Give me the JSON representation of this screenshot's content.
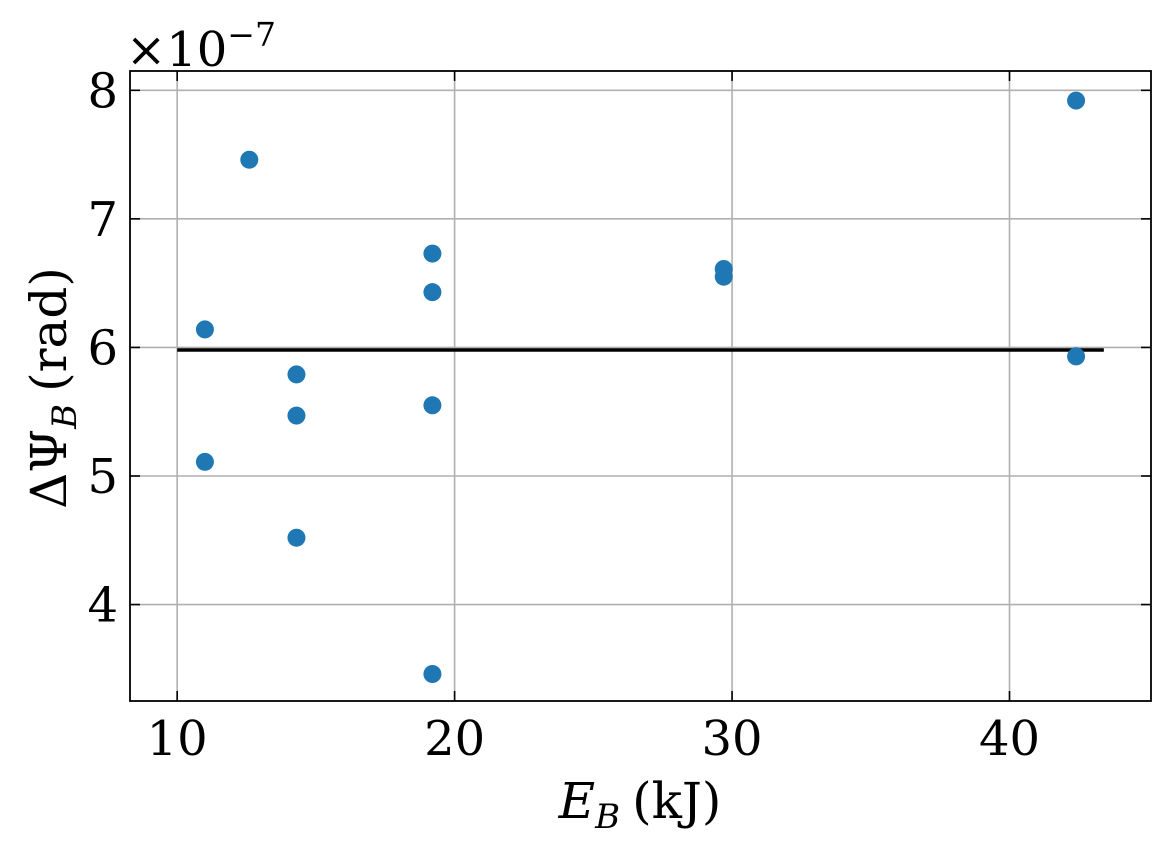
{
  "chart_data": {
    "type": "scatter",
    "xlabel": {
      "main": "E",
      "sub": "B",
      "unit": "(kJ)"
    },
    "ylabel": {
      "main": "ΔΨ",
      "sub": "B",
      "unit": "(rad)"
    },
    "y_scale_factor": {
      "base": "×10",
      "exponent": "−7"
    },
    "xlim": [
      8.3,
      45.1
    ],
    "ylim": [
      3.25,
      8.15
    ],
    "x_ticks": [
      10,
      20,
      30,
      40
    ],
    "y_ticks": [
      4,
      5,
      6,
      7,
      8
    ],
    "grid": true,
    "colors": {
      "points": "#1f77b4",
      "fit_line": "#000000",
      "grid": "#b0b0b0"
    },
    "series": [
      {
        "points": [
          {
            "x": 11.0,
            "y": 6.14
          },
          {
            "x": 11.0,
            "y": 5.11
          },
          {
            "x": 12.6,
            "y": 7.46
          },
          {
            "x": 14.3,
            "y": 5.79
          },
          {
            "x": 14.3,
            "y": 5.47
          },
          {
            "x": 14.3,
            "y": 4.52
          },
          {
            "x": 19.2,
            "y": 6.73
          },
          {
            "x": 19.2,
            "y": 6.43
          },
          {
            "x": 19.2,
            "y": 5.55
          },
          {
            "x": 19.2,
            "y": 3.46
          },
          {
            "x": 29.7,
            "y": 6.61
          },
          {
            "x": 29.7,
            "y": 6.55
          },
          {
            "x": 42.4,
            "y": 7.92
          },
          {
            "x": 42.4,
            "y": 5.93
          }
        ]
      }
    ],
    "reference_line": {
      "y": 5.98,
      "x_start": 10.0,
      "x_end": 43.4
    }
  }
}
